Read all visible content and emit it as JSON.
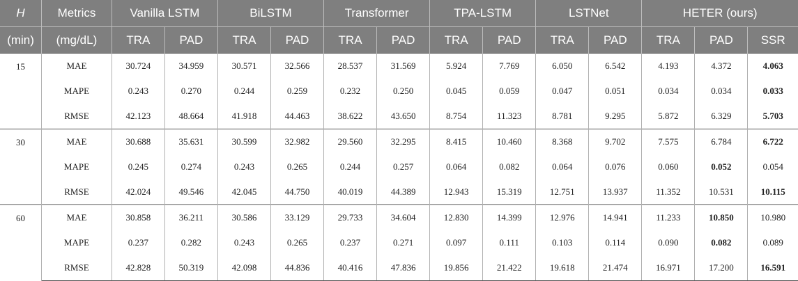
{
  "header": {
    "row1": {
      "h": "H",
      "metrics": "Metrics",
      "models": [
        "Vanilla LSTM",
        "BiLSTM",
        "Transformer",
        "TPA-LSTM",
        "LSTNet",
        "HETER (ours)"
      ]
    },
    "row2": {
      "h_unit": "(min)",
      "metrics_unit": "(mg/dL)",
      "subcols": [
        "TRA",
        "PAD",
        "TRA",
        "PAD",
        "TRA",
        "PAD",
        "TRA",
        "PAD",
        "TRA",
        "PAD",
        "TRA",
        "PAD",
        "SSR"
      ]
    }
  },
  "groups": [
    {
      "h": "15",
      "rows": [
        {
          "metric": "MAE",
          "values": [
            "30.724",
            "34.959",
            "30.571",
            "32.566",
            "28.537",
            "31.569",
            "5.924",
            "7.769",
            "6.050",
            "6.542",
            "4.193",
            "4.372",
            "4.063"
          ],
          "bold": [
            12
          ]
        },
        {
          "metric": "MAPE",
          "values": [
            "0.243",
            "0.270",
            "0.244",
            "0.259",
            "0.232",
            "0.250",
            "0.045",
            "0.059",
            "0.047",
            "0.051",
            "0.034",
            "0.034",
            "0.033"
          ],
          "bold": [
            12
          ]
        },
        {
          "metric": "RMSE",
          "values": [
            "42.123",
            "48.664",
            "41.918",
            "44.463",
            "38.622",
            "43.650",
            "8.754",
            "11.323",
            "8.781",
            "9.295",
            "5.872",
            "6.329",
            "5.703"
          ],
          "bold": [
            12
          ]
        }
      ]
    },
    {
      "h": "30",
      "rows": [
        {
          "metric": "MAE",
          "values": [
            "30.688",
            "35.631",
            "30.599",
            "32.982",
            "29.560",
            "32.295",
            "8.415",
            "10.460",
            "8.368",
            "9.702",
            "7.575",
            "6.784",
            "6.722"
          ],
          "bold": [
            12
          ]
        },
        {
          "metric": "MAPE",
          "values": [
            "0.245",
            "0.274",
            "0.243",
            "0.265",
            "0.244",
            "0.257",
            "0.064",
            "0.082",
            "0.064",
            "0.076",
            "0.060",
            "0.052",
            "0.054"
          ],
          "bold": [
            11
          ]
        },
        {
          "metric": "RMSE",
          "values": [
            "42.024",
            "49.546",
            "42.045",
            "44.750",
            "40.019",
            "44.389",
            "12.943",
            "15.319",
            "12.751",
            "13.937",
            "11.352",
            "10.531",
            "10.115"
          ],
          "bold": [
            12
          ]
        }
      ]
    },
    {
      "h": "60",
      "rows": [
        {
          "metric": "MAE",
          "values": [
            "30.858",
            "36.211",
            "30.586",
            "33.129",
            "29.733",
            "34.604",
            "12.830",
            "14.399",
            "12.976",
            "14.941",
            "11.233",
            "10.850",
            "10.980"
          ],
          "bold": [
            11
          ]
        },
        {
          "metric": "MAPE",
          "values": [
            "0.237",
            "0.282",
            "0.243",
            "0.265",
            "0.237",
            "0.271",
            "0.097",
            "0.111",
            "0.103",
            "0.114",
            "0.090",
            "0.082",
            "0.089"
          ],
          "bold": [
            11
          ]
        },
        {
          "metric": "RMSE",
          "values": [
            "42.828",
            "50.319",
            "42.098",
            "44.836",
            "40.416",
            "47.836",
            "19.856",
            "21.422",
            "19.618",
            "21.474",
            "16.971",
            "17.200",
            "16.591"
          ],
          "bold": [
            12
          ]
        }
      ]
    }
  ]
}
